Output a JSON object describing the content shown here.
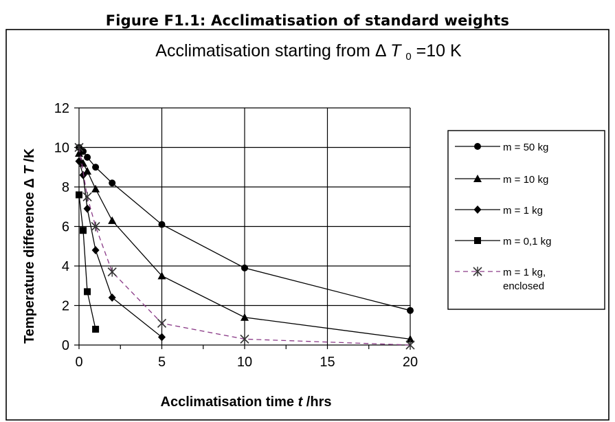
{
  "figure_title": "Figure F1.1: Acclimatisation of standard weights",
  "chart_data": {
    "type": "line",
    "title": {
      "prefix": "Acclimatisation starting from ",
      "delta": "Δ",
      "var": " T",
      "sub": "0",
      "suffix": "=10 K"
    },
    "xlabel": {
      "prefix": "Acclimatisation time ",
      "var": "t",
      "suffix": "/hrs"
    },
    "ylabel": {
      "prefix": "Temperature difference ",
      "delta": "Δ",
      "var": "T",
      "suffix": "/K"
    },
    "x_ticks": [
      "0",
      "5",
      "10",
      "15",
      "20"
    ],
    "y_ticks": [
      "0",
      "2",
      "4",
      "6",
      "8",
      "10",
      "12"
    ],
    "xlim": [
      0,
      20
    ],
    "ylim": [
      0,
      12
    ],
    "x_scale": "piecewise (0, 5, 10, 20 at equal intervals; 15 label shown between 10 and 20)",
    "grid": true,
    "legend_position": "right",
    "series": [
      {
        "name": "m = 50 kg",
        "marker": "circle",
        "dash": false,
        "color": "#000000",
        "x": [
          0,
          0.25,
          0.5,
          1,
          2,
          5,
          10,
          20
        ],
        "y": [
          10,
          9.8,
          9.5,
          9.0,
          8.2,
          6.1,
          3.9,
          1.75
        ]
      },
      {
        "name": "m = 10 kg",
        "marker": "triangle",
        "dash": false,
        "color": "#000000",
        "x": [
          0,
          0.25,
          0.5,
          1,
          2,
          5,
          10,
          20
        ],
        "y": [
          9.7,
          9.2,
          8.8,
          7.9,
          6.3,
          3.5,
          1.4,
          0.3
        ]
      },
      {
        "name": "m = 1 kg",
        "marker": "diamond",
        "dash": false,
        "color": "#000000",
        "x": [
          0,
          0.25,
          0.5,
          1,
          2,
          5
        ],
        "y": [
          9.3,
          8.6,
          6.9,
          4.8,
          2.4,
          0.4
        ]
      },
      {
        "name": "m = 0,1 kg",
        "marker": "square",
        "dash": false,
        "color": "#000000",
        "x": [
          0,
          0.25,
          0.5,
          1
        ],
        "y": [
          7.6,
          5.8,
          2.7,
          0.8
        ]
      },
      {
        "name": "m = 1 kg,",
        "name_line2": "enclosed",
        "marker": "x",
        "dash": true,
        "color": "#8a3a87",
        "x": [
          0,
          0.5,
          1,
          2,
          5,
          10,
          20
        ],
        "y": [
          10,
          7.5,
          6.0,
          3.7,
          1.1,
          0.3,
          0.0
        ]
      }
    ]
  }
}
